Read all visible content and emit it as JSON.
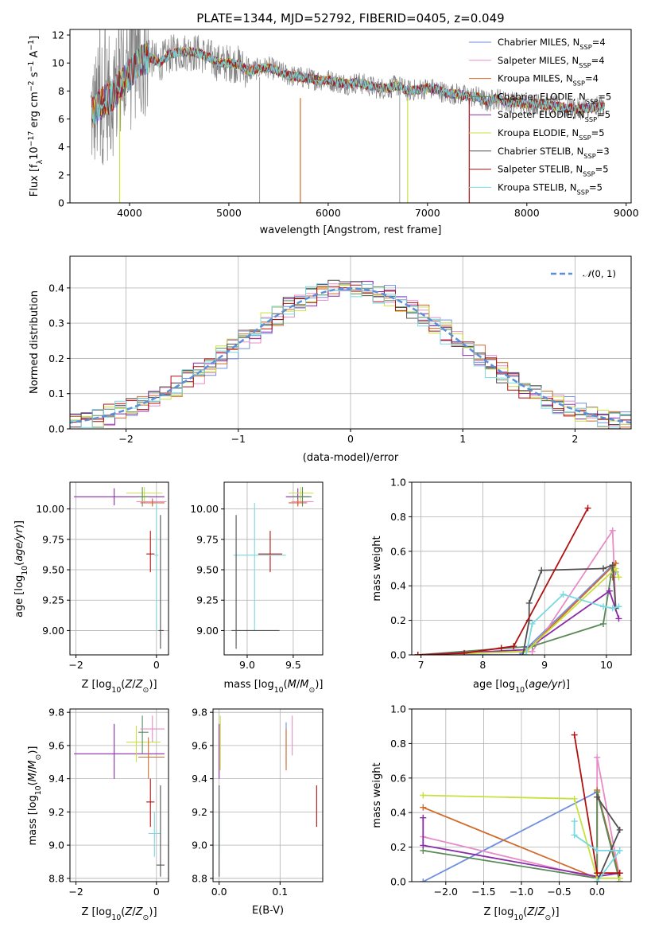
{
  "colors": {
    "Chabrier MILES": "#6f8fe0",
    "Salpeter MILES": "#e88cc8",
    "Kroupa MILES": "#d26a2a",
    "Chabrier ELODIE": "#5a8a5a",
    "Salpeter ELODIE": "#8a2aaa",
    "Kroupa ELODIE": "#c8e040",
    "Chabrier STELIB": "#505050",
    "Salpeter STELIB": "#b01010",
    "Kroupa STELIB": "#7ad8e0",
    "gauss": "#5b8fd8",
    "data": "#808080"
  },
  "chart_data": [
    {
      "id": "spectrum",
      "type": "line",
      "title": "PLATE=1344, MJD=52792, FIBERID=0405, z=0.049",
      "xlabel": "wavelength [Angstrom, rest frame]",
      "ylabel": "Flux [fλ10⁻¹⁷ erg cm⁻² s⁻¹ A⁻¹]",
      "xlim": [
        3400,
        9050
      ],
      "ylim": [
        0,
        12.4
      ],
      "xticks": [
        "4000",
        "5000",
        "6000",
        "7000",
        "8000",
        "9000"
      ],
      "yticks": [
        "0",
        "2",
        "4",
        "6",
        "8",
        "10",
        "12"
      ],
      "legend": [
        "Chabrier MILES, N_SSP=4",
        "Salpeter MILES, N_SSP=4",
        "Kroupa MILES, N_SSP=4",
        "Chabrier ELODIE, N_SSP=5",
        "Salpeter ELODIE, N_SSP=5",
        "Kroupa ELODIE, N_SSP=5",
        "Chabrier STELIB, N_SSP=3",
        "Salpeter STELIB, N_SSP=5",
        "Kroupa STELIB, N_SSP=5"
      ],
      "continuum": [
        [
          3600,
          6.2
        ],
        [
          3700,
          7.0
        ],
        [
          3800,
          7.5
        ],
        [
          3900,
          8.3
        ],
        [
          4000,
          9.2
        ],
        [
          4100,
          10.2
        ],
        [
          4200,
          10.4
        ],
        [
          4300,
          10.0
        ],
        [
          4400,
          10.6
        ],
        [
          4500,
          10.8
        ],
        [
          4600,
          10.8
        ],
        [
          4700,
          10.7
        ],
        [
          4800,
          10.4
        ],
        [
          4900,
          10.0
        ],
        [
          5000,
          10.0
        ],
        [
          5100,
          9.9
        ],
        [
          5200,
          9.4
        ],
        [
          5300,
          9.6
        ],
        [
          5400,
          9.7
        ],
        [
          5500,
          9.4
        ],
        [
          5600,
          9.1
        ],
        [
          5700,
          9.0
        ],
        [
          5800,
          8.9
        ],
        [
          5900,
          8.8
        ],
        [
          6000,
          8.8
        ],
        [
          6100,
          8.6
        ],
        [
          6200,
          8.5
        ],
        [
          6300,
          8.6
        ],
        [
          6400,
          8.4
        ],
        [
          6500,
          8.2
        ],
        [
          6600,
          8.2
        ],
        [
          6700,
          8.4
        ],
        [
          6800,
          8.0
        ],
        [
          6900,
          8.1
        ],
        [
          7000,
          8.2
        ],
        [
          7100,
          8.1
        ],
        [
          7200,
          7.8
        ],
        [
          7300,
          7.8
        ],
        [
          7400,
          7.6
        ],
        [
          7500,
          7.6
        ],
        [
          7600,
          7.2
        ],
        [
          7700,
          7.5
        ],
        [
          7800,
          7.2
        ],
        [
          7900,
          7.2
        ],
        [
          8000,
          7.1
        ],
        [
          8100,
          7.1
        ],
        [
          8200,
          7.0
        ],
        [
          8300,
          6.9
        ],
        [
          8400,
          6.8
        ],
        [
          8500,
          6.7
        ],
        [
          8600,
          6.8
        ],
        [
          8700,
          6.8
        ],
        [
          8780,
          7.0
        ]
      ],
      "spikes": [
        3900,
        5720,
        6800,
        7420
      ]
    },
    {
      "id": "residuals",
      "type": "step",
      "xlabel": "(data-model)/error",
      "ylabel": "Normed distribution",
      "xlim": [
        -2.5,
        2.5
      ],
      "ylim": [
        0,
        0.49
      ],
      "xticks": [
        "−2",
        "−1",
        "0",
        "1",
        "2"
      ],
      "yticks": [
        "0.0",
        "0.1",
        "0.2",
        "0.3",
        "0.4"
      ],
      "legend": "N(0, 1)"
    },
    {
      "id": "age-vs-Z",
      "type": "errorbar",
      "xlabel": "Z [log10(Z/Z☉)]",
      "ylabel": "age  [log10(age/yr)]",
      "xlim": [
        -2.15,
        0.3
      ],
      "ylim": [
        8.8,
        10.22
      ],
      "xticks": [
        -2,
        0
      ],
      "yticks": [
        9.0,
        9.25,
        9.5,
        9.75,
        10.0
      ],
      "points": [
        {
          "model": "Salpeter ELODIE",
          "x": -1.05,
          "y": 10.1,
          "xl": -2.05,
          "xh": 0.2,
          "yl": 10.03,
          "yh": 10.17
        },
        {
          "model": "Kroupa ELODIE",
          "x": -0.3,
          "y": 10.13,
          "xl": -0.75,
          "xh": 0.15,
          "yl": 10.05,
          "yh": 10.18
        },
        {
          "model": "Chabrier ELODIE",
          "x": -0.35,
          "y": 10.1,
          "xl": -0.45,
          "xh": -0.2,
          "yl": 10.02,
          "yh": 10.18
        },
        {
          "model": "Salpeter MILES",
          "x": -0.1,
          "y": 10.06,
          "xl": -0.5,
          "xh": 0.25,
          "yl": 10.03,
          "yh": 10.09
        },
        {
          "model": "Kroupa MILES",
          "x": -0.1,
          "y": 10.05,
          "xl": -0.4,
          "xh": 0.2,
          "yl": 10.02,
          "yh": 10.08
        },
        {
          "model": "Salpeter STELIB",
          "x": -0.15,
          "y": 9.63,
          "xl": -0.25,
          "xh": -0.05,
          "yl": 9.48,
          "yh": 9.82
        },
        {
          "model": "Kroupa STELIB",
          "x": 0.0,
          "y": 9.62,
          "xl": -0.05,
          "xh": 0.05,
          "yl": 9.0,
          "yh": 10.05
        },
        {
          "model": "Chabrier STELIB",
          "x": 0.1,
          "y": 9.0,
          "xl": 0.05,
          "xh": 0.18,
          "yl": 8.85,
          "yh": 9.95
        }
      ]
    },
    {
      "id": "age-vs-mass",
      "type": "errorbar",
      "xlabel": "mass [log10(M/M☉)]",
      "ylabel": "",
      "xlim": [
        8.75,
        9.82
      ],
      "ylim": [
        8.8,
        10.22
      ],
      "xticks": [
        9.0,
        9.5
      ],
      "yticks": [
        9.0,
        9.25,
        9.5,
        9.75,
        10.0
      ],
      "points": [
        {
          "model": "Salpeter ELODIE",
          "x": 9.55,
          "y": 10.1,
          "xl": 9.42,
          "xh": 9.68,
          "yl": 10.03,
          "yh": 10.17
        },
        {
          "model": "Kroupa ELODIE",
          "x": 9.58,
          "y": 10.13,
          "xl": 9.45,
          "xh": 9.72,
          "yl": 10.05,
          "yh": 10.18
        },
        {
          "model": "Salpeter MILES",
          "x": 9.6,
          "y": 10.06,
          "xl": 9.48,
          "xh": 9.72,
          "yl": 10.03,
          "yh": 10.09
        },
        {
          "model": "Kroupa MILES",
          "x": 9.55,
          "y": 10.05,
          "xl": 9.45,
          "xh": 9.65,
          "yl": 10.02,
          "yh": 10.08
        },
        {
          "model": "Chabrier ELODIE",
          "x": 9.6,
          "y": 10.1,
          "xl": 9.5,
          "xh": 9.7,
          "yl": 10.02,
          "yh": 10.18
        },
        {
          "model": "Salpeter STELIB",
          "x": 9.25,
          "y": 9.63,
          "xl": 9.12,
          "xh": 9.38,
          "yl": 9.48,
          "yh": 9.82
        },
        {
          "model": "Kroupa STELIB",
          "x": 9.08,
          "y": 9.62,
          "xl": 8.85,
          "xh": 9.42,
          "yl": 9.0,
          "yh": 10.05
        },
        {
          "model": "Chabrier STELIB",
          "x": 8.88,
          "y": 9.0,
          "xl": 8.83,
          "xh": 9.35,
          "yl": 8.85,
          "yh": 9.95
        }
      ]
    },
    {
      "id": "weight-vs-age",
      "type": "line",
      "xlabel": "age  [log10(age/yr)]",
      "ylabel": "mass weight",
      "xlim": [
        6.85,
        10.4
      ],
      "ylim": [
        0,
        1.0
      ],
      "xticks": [
        7,
        8,
        9,
        10
      ],
      "yticks": [
        0.0,
        0.2,
        0.4,
        0.6,
        0.8,
        1.0
      ],
      "series": [
        {
          "model": "Chabrier MILES",
          "points": [
            [
              6.95,
              0.0
            ],
            [
              8.6,
              0.0
            ],
            [
              10.1,
              0.52
            ],
            [
              10.15,
              0.48
            ]
          ]
        },
        {
          "model": "Salpeter MILES",
          "points": [
            [
              6.95,
              0.0
            ],
            [
              8.8,
              0.02
            ],
            [
              10.1,
              0.72
            ],
            [
              10.15,
              0.27
            ]
          ]
        },
        {
          "model": "Kroupa MILES",
          "points": [
            [
              6.95,
              0.0
            ],
            [
              8.7,
              0.02
            ],
            [
              10.15,
              0.53
            ],
            [
              10.1,
              0.45
            ]
          ]
        },
        {
          "model": "Chabrier ELODIE",
          "points": [
            [
              6.95,
              0.0
            ],
            [
              8.8,
              0.05
            ],
            [
              9.95,
              0.18
            ],
            [
              10.1,
              0.52
            ]
          ]
        },
        {
          "model": "Salpeter ELODIE",
          "points": [
            [
              6.95,
              0.0
            ],
            [
              8.7,
              0.03
            ],
            [
              10.05,
              0.37
            ],
            [
              10.2,
              0.21
            ]
          ]
        },
        {
          "model": "Kroupa ELODIE",
          "points": [
            [
              6.95,
              0.0
            ],
            [
              8.7,
              0.02
            ],
            [
              10.15,
              0.5
            ],
            [
              10.2,
              0.45
            ]
          ]
        },
        {
          "model": "Chabrier STELIB",
          "points": [
            [
              8.65,
              0.0
            ],
            [
              8.75,
              0.2
            ],
            [
              8.75,
              0.3
            ],
            [
              8.95,
              0.49
            ],
            [
              9.95,
              0.5
            ],
            [
              10.1,
              0.52
            ],
            [
              10.15,
              0.27
            ]
          ]
        },
        {
          "model": "Salpeter STELIB",
          "points": [
            [
              6.95,
              0.0
            ],
            [
              7.7,
              0.01
            ],
            [
              8.3,
              0.04
            ],
            [
              8.5,
              0.05
            ],
            [
              9.7,
              0.85
            ]
          ]
        },
        {
          "model": "Kroupa STELIB",
          "points": [
            [
              8.7,
              0.0
            ],
            [
              8.8,
              0.18
            ],
            [
              9.3,
              0.35
            ],
            [
              9.95,
              0.28
            ],
            [
              10.1,
              0.27
            ],
            [
              10.2,
              0.28
            ]
          ]
        }
      ]
    },
    {
      "id": "mass-vs-Z",
      "type": "errorbar",
      "xlabel": "Z [log10(Z/Z☉)]",
      "ylabel": "mass [log10(M/M☉)]",
      "xlim": [
        -2.15,
        0.3
      ],
      "ylim": [
        8.78,
        9.82
      ],
      "xticks": [
        -2,
        0
      ],
      "yticks": [
        8.8,
        9.0,
        9.2,
        9.4,
        9.6,
        9.8
      ],
      "points": [
        {
          "model": "Salpeter ELODIE",
          "x": -1.05,
          "y": 9.55,
          "xl": -2.05,
          "xh": 0.2,
          "yl": 9.4,
          "yh": 9.73
        },
        {
          "model": "Kroupa ELODIE",
          "x": -0.5,
          "y": 9.62,
          "xl": -0.75,
          "xh": 0.1,
          "yl": 9.5,
          "yh": 9.72
        },
        {
          "model": "Chabrier ELODIE",
          "x": -0.35,
          "y": 9.68,
          "xl": -0.45,
          "xh": -0.2,
          "yl": 9.55,
          "yh": 9.78
        },
        {
          "model": "Salpeter MILES",
          "x": -0.1,
          "y": 9.7,
          "xl": -0.4,
          "xh": 0.2,
          "yl": 9.62,
          "yh": 9.78
        },
        {
          "model": "Kroupa MILES",
          "x": -0.2,
          "y": 9.53,
          "xl": -0.45,
          "xh": 0.2,
          "yl": 9.4,
          "yh": 9.65
        },
        {
          "model": "Salpeter STELIB",
          "x": -0.15,
          "y": 9.26,
          "xl": -0.25,
          "xh": -0.05,
          "yl": 9.11,
          "yh": 9.4
        },
        {
          "model": "Kroupa STELIB",
          "x": -0.05,
          "y": 9.07,
          "xl": -0.2,
          "xh": 0.1,
          "yl": 8.93,
          "yh": 9.2
        },
        {
          "model": "Chabrier STELIB",
          "x": 0.1,
          "y": 8.88,
          "xl": 0.0,
          "xh": 0.2,
          "yl": 8.81,
          "yh": 9.36
        }
      ]
    },
    {
      "id": "mass-vs-EBV",
      "type": "errorbar",
      "xlabel": "E(B-V)",
      "ylabel": "",
      "xlim": [
        -0.01,
        0.17
      ],
      "ylim": [
        8.78,
        9.82
      ],
      "xticks": [
        0.0,
        0.1
      ],
      "yticks": [
        8.8,
        9.0,
        9.2,
        9.4,
        9.6,
        9.8
      ],
      "points": [
        {
          "model": "Kroupa STELIB",
          "x": 0.0,
          "y": 9.07,
          "xl": 0.0,
          "xh": 0.0,
          "yl": 8.93,
          "yh": 9.2
        },
        {
          "model": "Chabrier STELIB",
          "x": 0.0,
          "y": 8.88,
          "xl": 0.0,
          "xh": 0.0,
          "yl": 8.81,
          "yh": 9.36
        },
        {
          "model": "Salpeter ELODIE",
          "x": 0.0,
          "y": 9.55,
          "xl": 0.0,
          "xh": 0.0,
          "yl": 9.4,
          "yh": 9.73
        },
        {
          "model": "Kroupa ELODIE",
          "x": 0.002,
          "y": 9.6,
          "xl": 0.002,
          "xh": 0.002,
          "yl": 9.45,
          "yh": 9.78
        },
        {
          "model": "Chabrier MILES",
          "x": 0.11,
          "y": 9.6,
          "xl": 0.11,
          "xh": 0.11,
          "yl": 9.48,
          "yh": 9.74
        },
        {
          "model": "Kroupa MILES",
          "x": 0.11,
          "y": 9.55,
          "xl": 0.11,
          "xh": 0.11,
          "yl": 9.45,
          "yh": 9.7
        },
        {
          "model": "Salpeter MILES",
          "x": 0.12,
          "y": 9.65,
          "xl": 0.12,
          "xh": 0.12,
          "yl": 9.54,
          "yh": 9.78
        },
        {
          "model": "Salpeter STELIB",
          "x": 0.16,
          "y": 9.24,
          "xl": 0.16,
          "xh": 0.16,
          "yl": 9.11,
          "yh": 9.36
        }
      ]
    },
    {
      "id": "weight-vs-Z",
      "type": "line",
      "xlabel": "Z [log10(Z/Z☉)]",
      "ylabel": "mass weight",
      "xlim": [
        -2.45,
        0.45
      ],
      "ylim": [
        0,
        1.0
      ],
      "xticks": [
        "−2.0",
        "−1.5",
        "−1.0",
        "−0.5",
        "0.0"
      ],
      "yticks": [
        0.0,
        0.2,
        0.4,
        0.6,
        0.8,
        1.0
      ],
      "series": [
        {
          "model": "Chabrier MILES",
          "points": [
            [
              -2.3,
              0.0
            ],
            [
              0.0,
              0.52
            ],
            [
              0.3,
              0.0
            ]
          ]
        },
        {
          "model": "Salpeter MILES",
          "points": [
            [
              -2.3,
              0.26
            ],
            [
              0.0,
              0.02
            ],
            [
              0.0,
              0.72
            ],
            [
              0.3,
              0.02
            ]
          ]
        },
        {
          "model": "Kroupa MILES",
          "points": [
            [
              -2.3,
              0.43
            ],
            [
              0.0,
              0.02
            ],
            [
              0.0,
              0.53
            ],
            [
              0.3,
              0.02
            ]
          ]
        },
        {
          "model": "Chabrier ELODIE",
          "points": [
            [
              -2.3,
              0.18
            ],
            [
              0.0,
              0.02
            ],
            [
              0.0,
              0.52
            ],
            [
              0.3,
              0.0
            ]
          ]
        },
        {
          "model": "Salpeter ELODIE",
          "points": [
            [
              -2.3,
              0.37
            ],
            [
              -2.3,
              0.21
            ],
            [
              0.0,
              0.03
            ],
            [
              0.3,
              0.05
            ]
          ]
        },
        {
          "model": "Kroupa ELODIE",
          "points": [
            [
              -2.3,
              0.5
            ],
            [
              -0.3,
              0.48
            ],
            [
              0.0,
              0.02
            ],
            [
              0.3,
              0.02
            ]
          ]
        },
        {
          "model": "Chabrier STELIB",
          "points": [
            [
              0.0,
              0.49
            ],
            [
              0.3,
              0.3
            ],
            [
              0.0,
              0.0
            ]
          ]
        },
        {
          "model": "Salpeter STELIB",
          "points": [
            [
              -0.3,
              0.85
            ],
            [
              0.0,
              0.05
            ],
            [
              0.3,
              0.05
            ]
          ]
        },
        {
          "model": "Kroupa STELIB",
          "points": [
            [
              -0.3,
              0.35
            ],
            [
              -0.3,
              0.27
            ],
            [
              0.0,
              0.18
            ],
            [
              0.3,
              0.18
            ],
            [
              0.0,
              0.0
            ]
          ]
        }
      ]
    }
  ]
}
